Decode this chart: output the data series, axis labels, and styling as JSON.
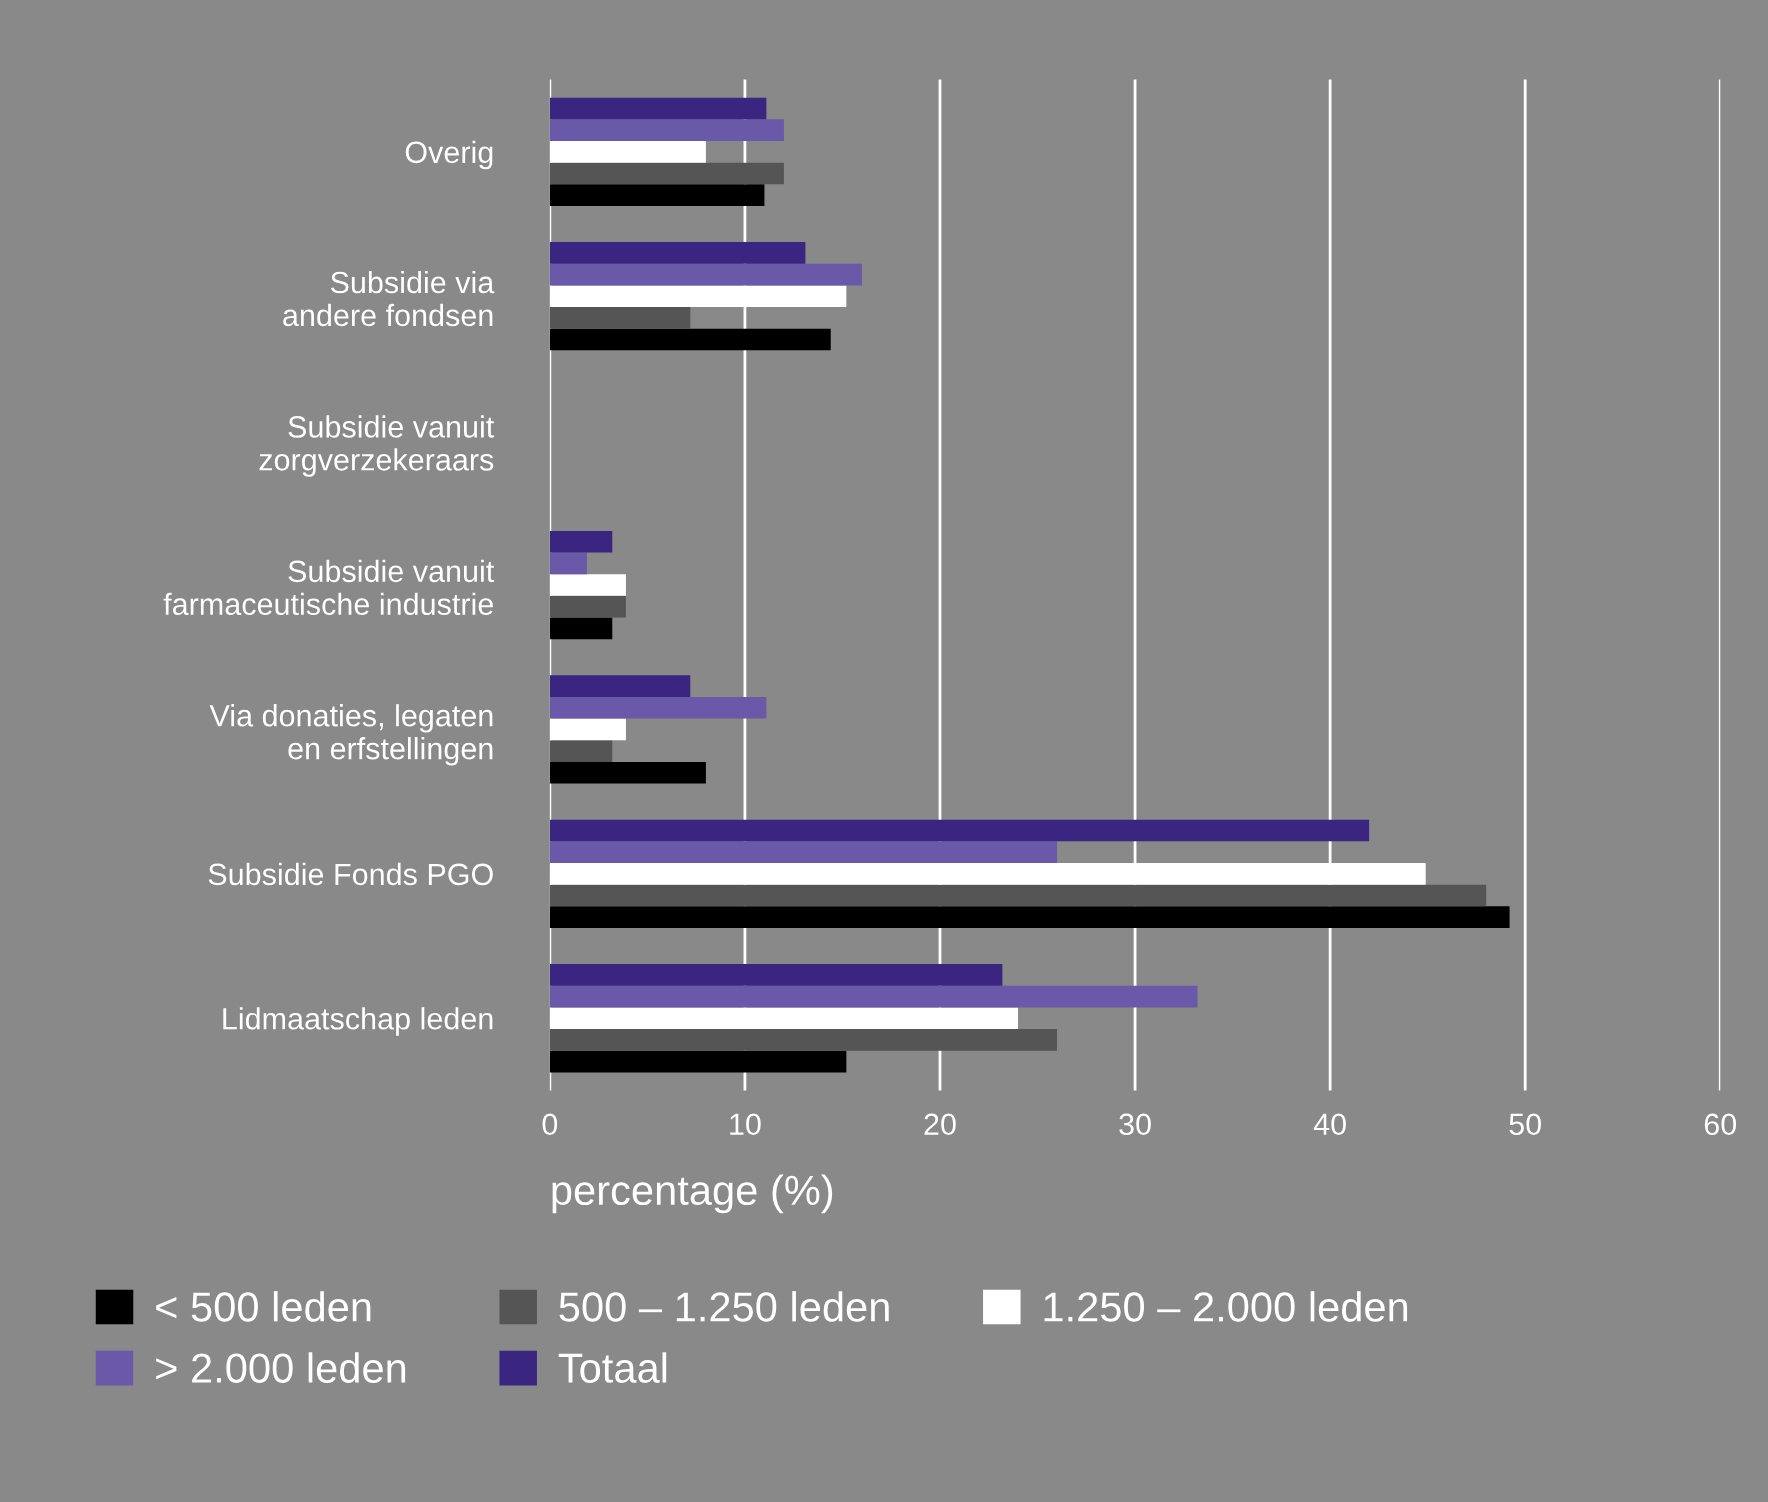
{
  "chart_data": {
    "type": "bar",
    "orientation": "horizontal",
    "categories": [
      "Overig",
      "Subsidie via\nandere fondsen",
      "Subsidie vanuit\nzorgverzekeraars",
      "Subsidie vanuit\nfarmaceutische industrie",
      "Via donaties, legaten\nen erfstellingen",
      "Subsidie Fonds PGO",
      "Lidmaatschap leden"
    ],
    "series": [
      {
        "name": "< 500 leden",
        "color": "#000000",
        "values": [
          11,
          14.4,
          0,
          3.2,
          8,
          49.2,
          15.2
        ]
      },
      {
        "name": "500 – 1.250 leden",
        "color": "#555555",
        "values": [
          12,
          7.2,
          0,
          3.9,
          3.2,
          48,
          26
        ]
      },
      {
        "name": "1.250 – 2.000 leden",
        "color": "#ffffff",
        "values": [
          8,
          15.2,
          0,
          3.9,
          3.9,
          44.9,
          24
        ]
      },
      {
        "name": "> 2.000 leden",
        "color": "#6a58a8",
        "values": [
          12,
          16,
          0,
          1.9,
          11.1,
          26,
          33.2
        ]
      },
      {
        "name": "Totaal",
        "color": "#3a2680",
        "values": [
          11.1,
          13.1,
          0,
          3.2,
          7.2,
          42,
          23.2
        ]
      }
    ],
    "xlabel": "percentage (%)",
    "xlim": [
      0,
      60
    ],
    "xticks": [
      0,
      10,
      20,
      30,
      40,
      50,
      60
    ],
    "grid": "x",
    "legend": "bottom"
  }
}
